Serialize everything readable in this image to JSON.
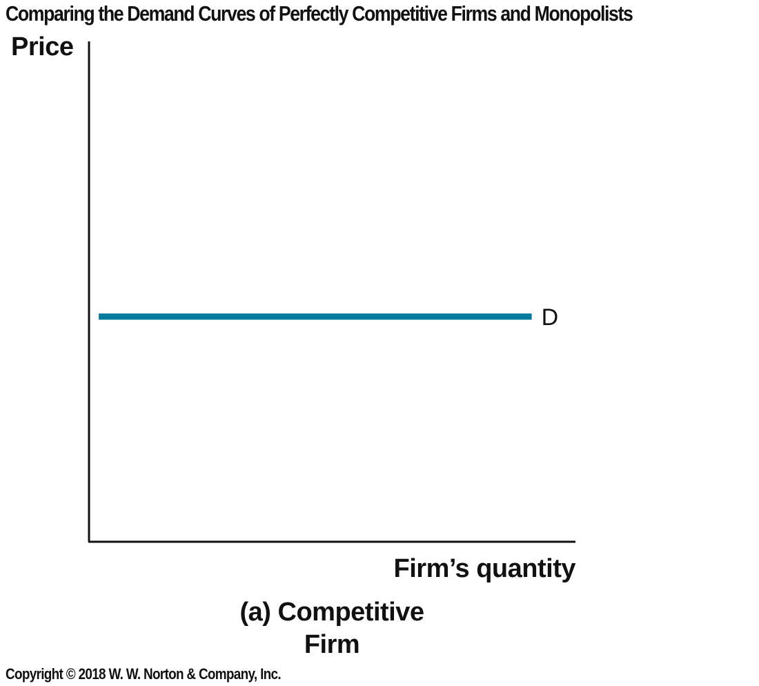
{
  "title": "Comparing the Demand Curves of Perfectly Competitive Firms and Monopolists",
  "chart_data": {
    "type": "line",
    "title": "Comparing the Demand Curves of Perfectly Competitive Firms and Monopolists",
    "ylabel": "Price",
    "xlabel": "Firm’s quantity",
    "panel_caption": [
      "(a) Competitive",
      "Firm"
    ],
    "xlim": [
      0,
      100
    ],
    "ylim": [
      0,
      100
    ],
    "grid": false,
    "ticks": false,
    "series": [
      {
        "name": "D",
        "color": "#00799f",
        "x": [
          2,
          91
        ],
        "y": [
          45,
          45
        ]
      }
    ]
  },
  "copyright": "Copyright © 2018 W. W. Norton & Company, Inc."
}
